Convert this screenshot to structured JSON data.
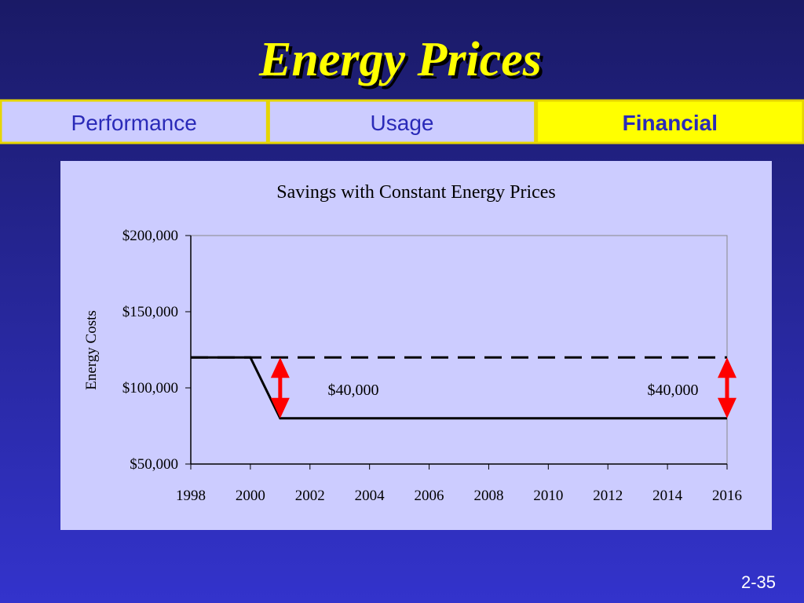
{
  "title": "Energy Prices",
  "tabs": [
    "Performance",
    "Usage",
    "Financial"
  ],
  "active_tab": 2,
  "page_number": "2-35",
  "chart_data": {
    "type": "line",
    "title": "Savings with Constant Energy Prices",
    "y_label": "Energy Costs",
    "x": [
      1998,
      1999,
      2000,
      2001,
      2002,
      2003,
      2004,
      2005,
      2006,
      2007,
      2008,
      2009,
      2010,
      2011,
      2012,
      2013,
      2014,
      2015,
      2016
    ],
    "series": [
      {
        "color": "#000000",
        "dashed": true,
        "values": [
          120000,
          120000,
          120000,
          120000,
          120000,
          120000,
          120000,
          120000,
          120000,
          120000,
          120000,
          120000,
          120000,
          120000,
          120000,
          120000,
          120000,
          120000,
          120000
        ]
      },
      {
        "color": "#000000",
        "dashed": false,
        "values": [
          120000,
          120000,
          120000,
          80000,
          80000,
          80000,
          80000,
          80000,
          80000,
          80000,
          80000,
          80000,
          80000,
          80000,
          80000,
          80000,
          80000,
          80000,
          80000
        ]
      }
    ],
    "annotations": [
      "$40,000",
      "$40,000"
    ],
    "arrow_color": "#ff0000",
    "xlim": [
      1998,
      2016
    ],
    "xticks": [
      1998,
      2000,
      2002,
      2004,
      2006,
      2008,
      2010,
      2012,
      2014,
      2016
    ],
    "ylim": [
      50000,
      200000
    ],
    "yticks": [
      {
        "value": 50000,
        "label": "$50,000"
      },
      {
        "value": 100000,
        "label": "$100,000"
      },
      {
        "value": 150000,
        "label": "$150,000"
      },
      {
        "value": 200000,
        "label": "$200,000"
      }
    ]
  }
}
